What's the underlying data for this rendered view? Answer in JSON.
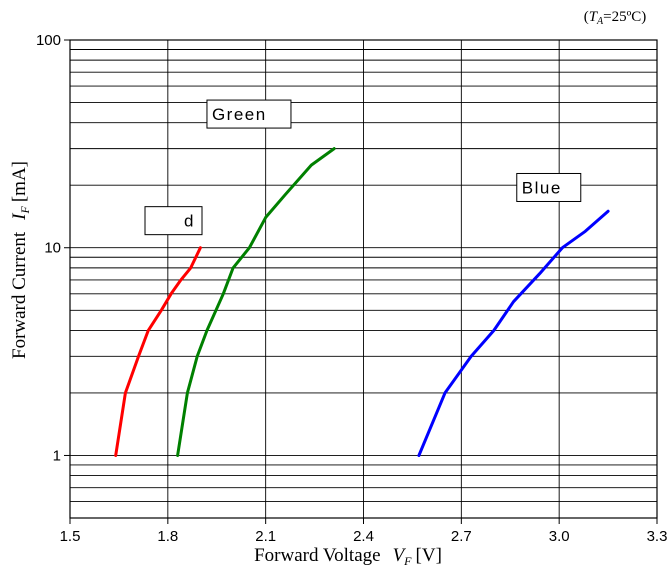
{
  "chart_data": {
    "type": "line",
    "condition": "(TA=25ºC)",
    "condition_parts": {
      "open": "(",
      "var": "T",
      "sub": "A",
      "rest": "=25ºC)"
    },
    "xlabel": "Forward Voltage",
    "xlabel_var": "V",
    "xlabel_sub": "F",
    "xlabel_unit": "[V]",
    "ylabel": "Forward Current",
    "ylabel_var": "I",
    "ylabel_sub": "F",
    "ylabel_unit": "[mA]",
    "xlim": [
      1.5,
      3.3
    ],
    "ylim": [
      0.5,
      100
    ],
    "yscale": "log",
    "grid": true,
    "xticks": [
      "1.5",
      "1.8",
      "2.1",
      "2.4",
      "2.7",
      "3.0",
      "3.3"
    ],
    "yticks": [
      "1",
      "10",
      "100"
    ],
    "series": [
      {
        "name": "d",
        "color": "#ff0000",
        "x": [
          1.64,
          1.67,
          1.71,
          1.74,
          1.78,
          1.81,
          1.84,
          1.87,
          1.9
        ],
        "y": [
          1,
          2,
          3,
          4,
          5,
          6,
          7,
          8,
          10
        ]
      },
      {
        "name": "Green",
        "color": "#008000",
        "x": [
          1.83,
          1.86,
          1.89,
          1.92,
          1.97,
          2.0,
          2.05,
          2.1,
          2.16,
          2.24,
          2.31
        ],
        "y": [
          1,
          2,
          3,
          4,
          6,
          8,
          10,
          14,
          18,
          25,
          30
        ]
      },
      {
        "name": "Blue",
        "color": "#0000ff",
        "x": [
          2.57,
          2.65,
          2.73,
          2.8,
          2.86,
          2.94,
          3.01,
          3.08,
          3.15
        ],
        "y": [
          1,
          2,
          3,
          4,
          5.5,
          7.5,
          10,
          12,
          15
        ]
      }
    ]
  }
}
